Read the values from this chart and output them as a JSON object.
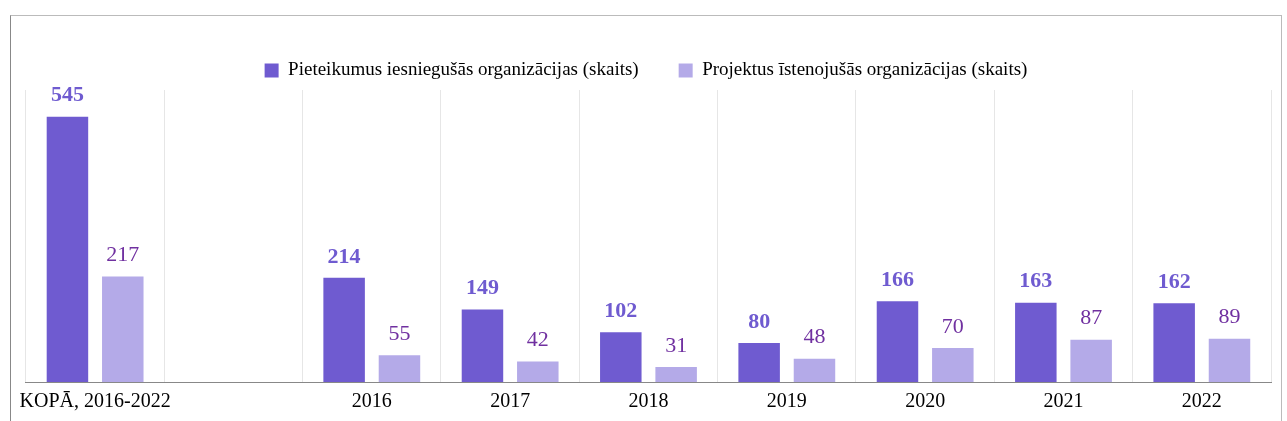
{
  "chart_data": {
    "type": "bar",
    "categories": [
      "KOPĀ, 2016-2022",
      null,
      "2016",
      "2017",
      "2018",
      "2019",
      "2020",
      "2021",
      "2022"
    ],
    "series": [
      {
        "name": "Pieteikumus iesniegušās organizācijas (skaits)",
        "color": "#6f5bd0",
        "values": [
          545,
          null,
          214,
          149,
          102,
          80,
          166,
          163,
          162
        ]
      },
      {
        "name": "Projektus īstenojušās organizācijas (skaits)",
        "color": "#b4aae8",
        "values": [
          217,
          null,
          55,
          42,
          31,
          48,
          70,
          87,
          89
        ]
      }
    ],
    "data_labels": true,
    "legend": "top",
    "grid": "x"
  }
}
